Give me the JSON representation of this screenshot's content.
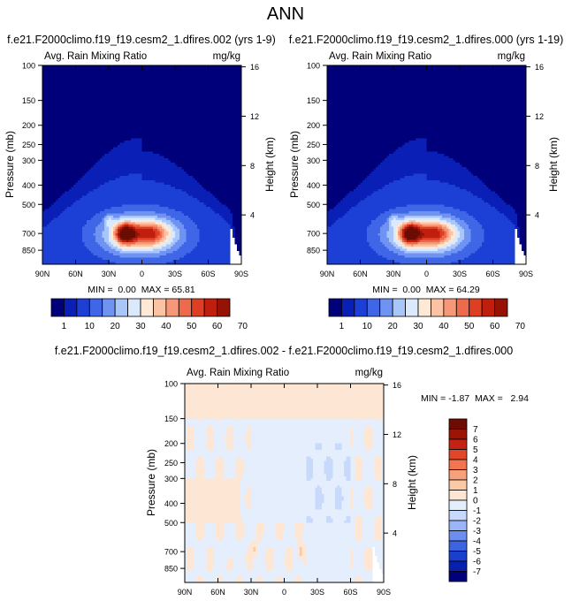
{
  "page_title": "ANN",
  "colors": {
    "abs_levels": [
      "#00007a",
      "#0a1fb5",
      "#1c3fd6",
      "#3e66e6",
      "#6f93f2",
      "#a9c6fa",
      "#dbe9fd",
      "#fde9d6",
      "#fbc3a4",
      "#f69777",
      "#ed6a4c",
      "#de3f23",
      "#c01f0d",
      "#951205",
      "#6a0c02"
    ],
    "diff_levels": [
      "#00007a",
      "#0820ad",
      "#1a3fcc",
      "#3c63e0",
      "#6d8eef",
      "#9bb6f7",
      "#c8dafc",
      "#e4eefd",
      "#fde7d4",
      "#fbcaa5",
      "#f7a17c",
      "#f07550",
      "#e0462a",
      "#c42314",
      "#9c1406",
      "#6d0c02"
    ]
  },
  "chart_data": [
    {
      "type": "heatmap",
      "title": "f.e21.F2000climo.f19_f19.cesm2_1.dfires.002 (yrs 1-9)",
      "left_label": "Avg. Rain Mixing Ratio",
      "right_label": "mg/kg",
      "ylabel": "Pressure (mb)",
      "ylabel_right": "Height (km)",
      "x_ticks": [
        "90N",
        "60N",
        "30N",
        "0",
        "30S",
        "60S",
        "90S"
      ],
      "y_ticks": [
        "100",
        "150",
        "200",
        "250",
        "300",
        "400",
        "500",
        "700",
        "850"
      ],
      "y_ticks_right": [
        "16",
        "12",
        "8",
        "4"
      ],
      "xlim": [
        90,
        -90
      ],
      "ylim": [
        1000,
        100
      ],
      "min_label": "MIN =  0.00  MAX = 65.81",
      "min": 0.0,
      "max": 65.81,
      "peak": {
        "lat": 10,
        "pressure": 700,
        "value": 65.81
      }
    },
    {
      "type": "heatmap",
      "title": "f.e21.F2000climo.f19_f19.cesm2_1.dfires.000 (yrs 1-19)",
      "left_label": "Avg. Rain Mixing Ratio",
      "right_label": "mg/kg",
      "ylabel": "Pressure (mb)",
      "ylabel_right": "Height (km)",
      "x_ticks": [
        "90N",
        "60N",
        "30N",
        "0",
        "30S",
        "60S",
        "90S"
      ],
      "y_ticks": [
        "100",
        "150",
        "200",
        "250",
        "300",
        "400",
        "500",
        "700",
        "850"
      ],
      "y_ticks_right": [
        "16",
        "12",
        "8",
        "4"
      ],
      "xlim": [
        90,
        -90
      ],
      "ylim": [
        1000,
        100
      ],
      "min_label": "MIN =  0.00  MAX = 64.29",
      "min": 0.0,
      "max": 64.29,
      "peak": {
        "lat": 10,
        "pressure": 700,
        "value": 64.29
      }
    },
    {
      "type": "heatmap",
      "title": "f.e21.F2000climo.f19_f19.cesm2_1.dfires.002 - f.e21.F2000climo.f19_f19.cesm2_1.dfires.000",
      "left_label": "Avg. Rain Mixing Ratio",
      "right_label": "mg/kg",
      "ylabel": "Pressure (mb)",
      "ylabel_right": "Height (km)",
      "x_ticks": [
        "90N",
        "60N",
        "30N",
        "0",
        "30S",
        "60S",
        "90S"
      ],
      "y_ticks": [
        "100",
        "150",
        "200",
        "250",
        "300",
        "400",
        "500",
        "700",
        "850"
      ],
      "y_ticks_right": [
        "16",
        "12",
        "8",
        "4"
      ],
      "xlim": [
        90,
        -90
      ],
      "ylim": [
        1000,
        100
      ],
      "min_label": "MIN = -1.87  MAX =   2.94",
      "min": -1.87,
      "max": 2.94
    }
  ],
  "colorbars": {
    "absolute": {
      "labels": [
        "1",
        "10",
        "20",
        "30",
        "40",
        "50",
        "60",
        "70"
      ],
      "boxes": 14
    },
    "difference": {
      "labels": [
        "7",
        "6",
        "5",
        "4",
        "3",
        "2",
        "1",
        "0",
        "-1",
        "-2",
        "-3",
        "-4",
        "-5",
        "-6",
        "-7"
      ],
      "boxes": 16
    }
  }
}
